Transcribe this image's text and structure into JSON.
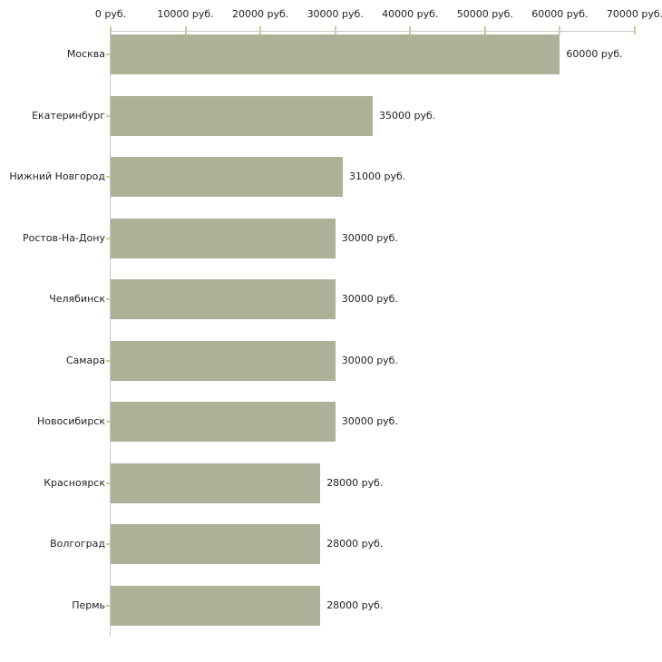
{
  "chart_data": {
    "type": "bar",
    "orientation": "horizontal",
    "title": "",
    "xlabel": "",
    "ylabel": "",
    "unit": "руб.",
    "categories": [
      "Москва",
      "Екатеринбург",
      "Нижний Новгород",
      "Ростов-На-Дону",
      "Челябинск",
      "Самара",
      "Новосибирск",
      "Красноярск",
      "Волгоград",
      "Пермь"
    ],
    "values": [
      60000,
      35000,
      31000,
      30000,
      30000,
      30000,
      30000,
      28000,
      28000,
      28000
    ],
    "value_labels": [
      "60000 руб.",
      "35000 руб.",
      "31000 руб.",
      "30000 руб.",
      "30000 руб.",
      "30000 руб.",
      "30000 руб.",
      "28000 руб.",
      "28000 руб.",
      "28000 руб."
    ],
    "x_axis": {
      "position": "top",
      "xlim": [
        0,
        70000
      ],
      "tick_values": [
        0,
        10000,
        20000,
        30000,
        40000,
        50000,
        60000,
        70000
      ],
      "tick_labels": [
        "0 руб.",
        "10000 руб.",
        "20000 руб.",
        "30000 руб.",
        "40000 руб.",
        "50000 руб.",
        "60000 руб.",
        "70000 руб."
      ]
    },
    "grid": false,
    "legend": false,
    "colors": {
      "bar": "#ACB298",
      "axis_line": "#C8C8C8",
      "tick_mark": "#CCCC99",
      "text": "#222222",
      "background": "#FFFFFF"
    }
  }
}
